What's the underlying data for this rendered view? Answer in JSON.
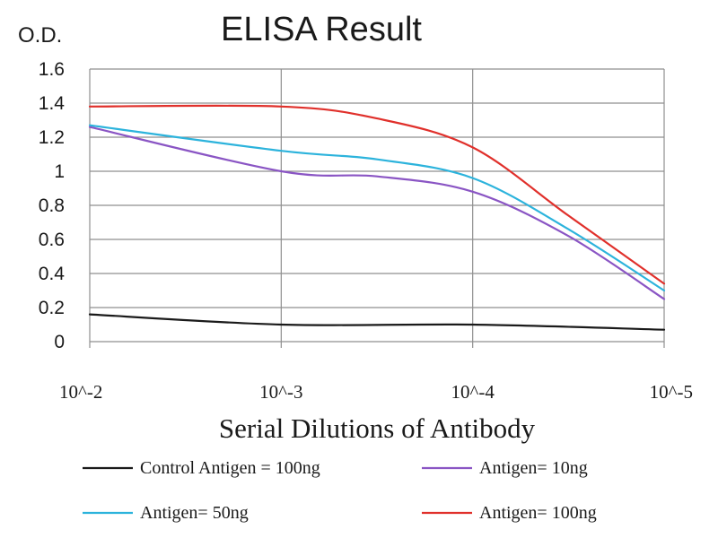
{
  "chart_data": {
    "type": "line",
    "title": "ELISA Result",
    "ylabel": "O.D.",
    "xlabel": "Serial Dilutions of Antibody",
    "categories": [
      "10^-2",
      "10^-3",
      "10^-4",
      "10^-5"
    ],
    "x_scale": "log",
    "ylim": [
      0,
      1.6
    ],
    "yticks": [
      "0",
      "0.2",
      "0.4",
      "0.6",
      "0.8",
      "1",
      "1.2",
      "1.4",
      "1.6"
    ],
    "grid": true,
    "legend_position": "bottom",
    "series": [
      {
        "name": "Control Antigen = 100ng",
        "color": "#1a1a1a",
        "points": [
          [
            0,
            0.16
          ],
          [
            1,
            0.1
          ],
          [
            2,
            0.1
          ],
          [
            3,
            0.07
          ]
        ]
      },
      {
        "name": "Antigen= 10ng",
        "color": "#8a55c4",
        "points": [
          [
            0,
            1.26
          ],
          [
            1,
            1.0
          ],
          [
            1.5,
            0.97
          ],
          [
            2,
            0.88
          ],
          [
            2.5,
            0.62
          ],
          [
            3,
            0.25
          ]
        ]
      },
      {
        "name": "Antigen= 50ng",
        "color": "#2cb3dc",
        "points": [
          [
            0,
            1.27
          ],
          [
            1,
            1.12
          ],
          [
            1.5,
            1.07
          ],
          [
            2,
            0.96
          ],
          [
            2.5,
            0.66
          ],
          [
            3,
            0.3
          ]
        ]
      },
      {
        "name": "Antigen= 100ng",
        "color": "#e0302b",
        "points": [
          [
            0,
            1.38
          ],
          [
            1,
            1.38
          ],
          [
            1.5,
            1.31
          ],
          [
            2,
            1.14
          ],
          [
            2.5,
            0.74
          ],
          [
            3,
            0.34
          ]
        ]
      }
    ]
  }
}
